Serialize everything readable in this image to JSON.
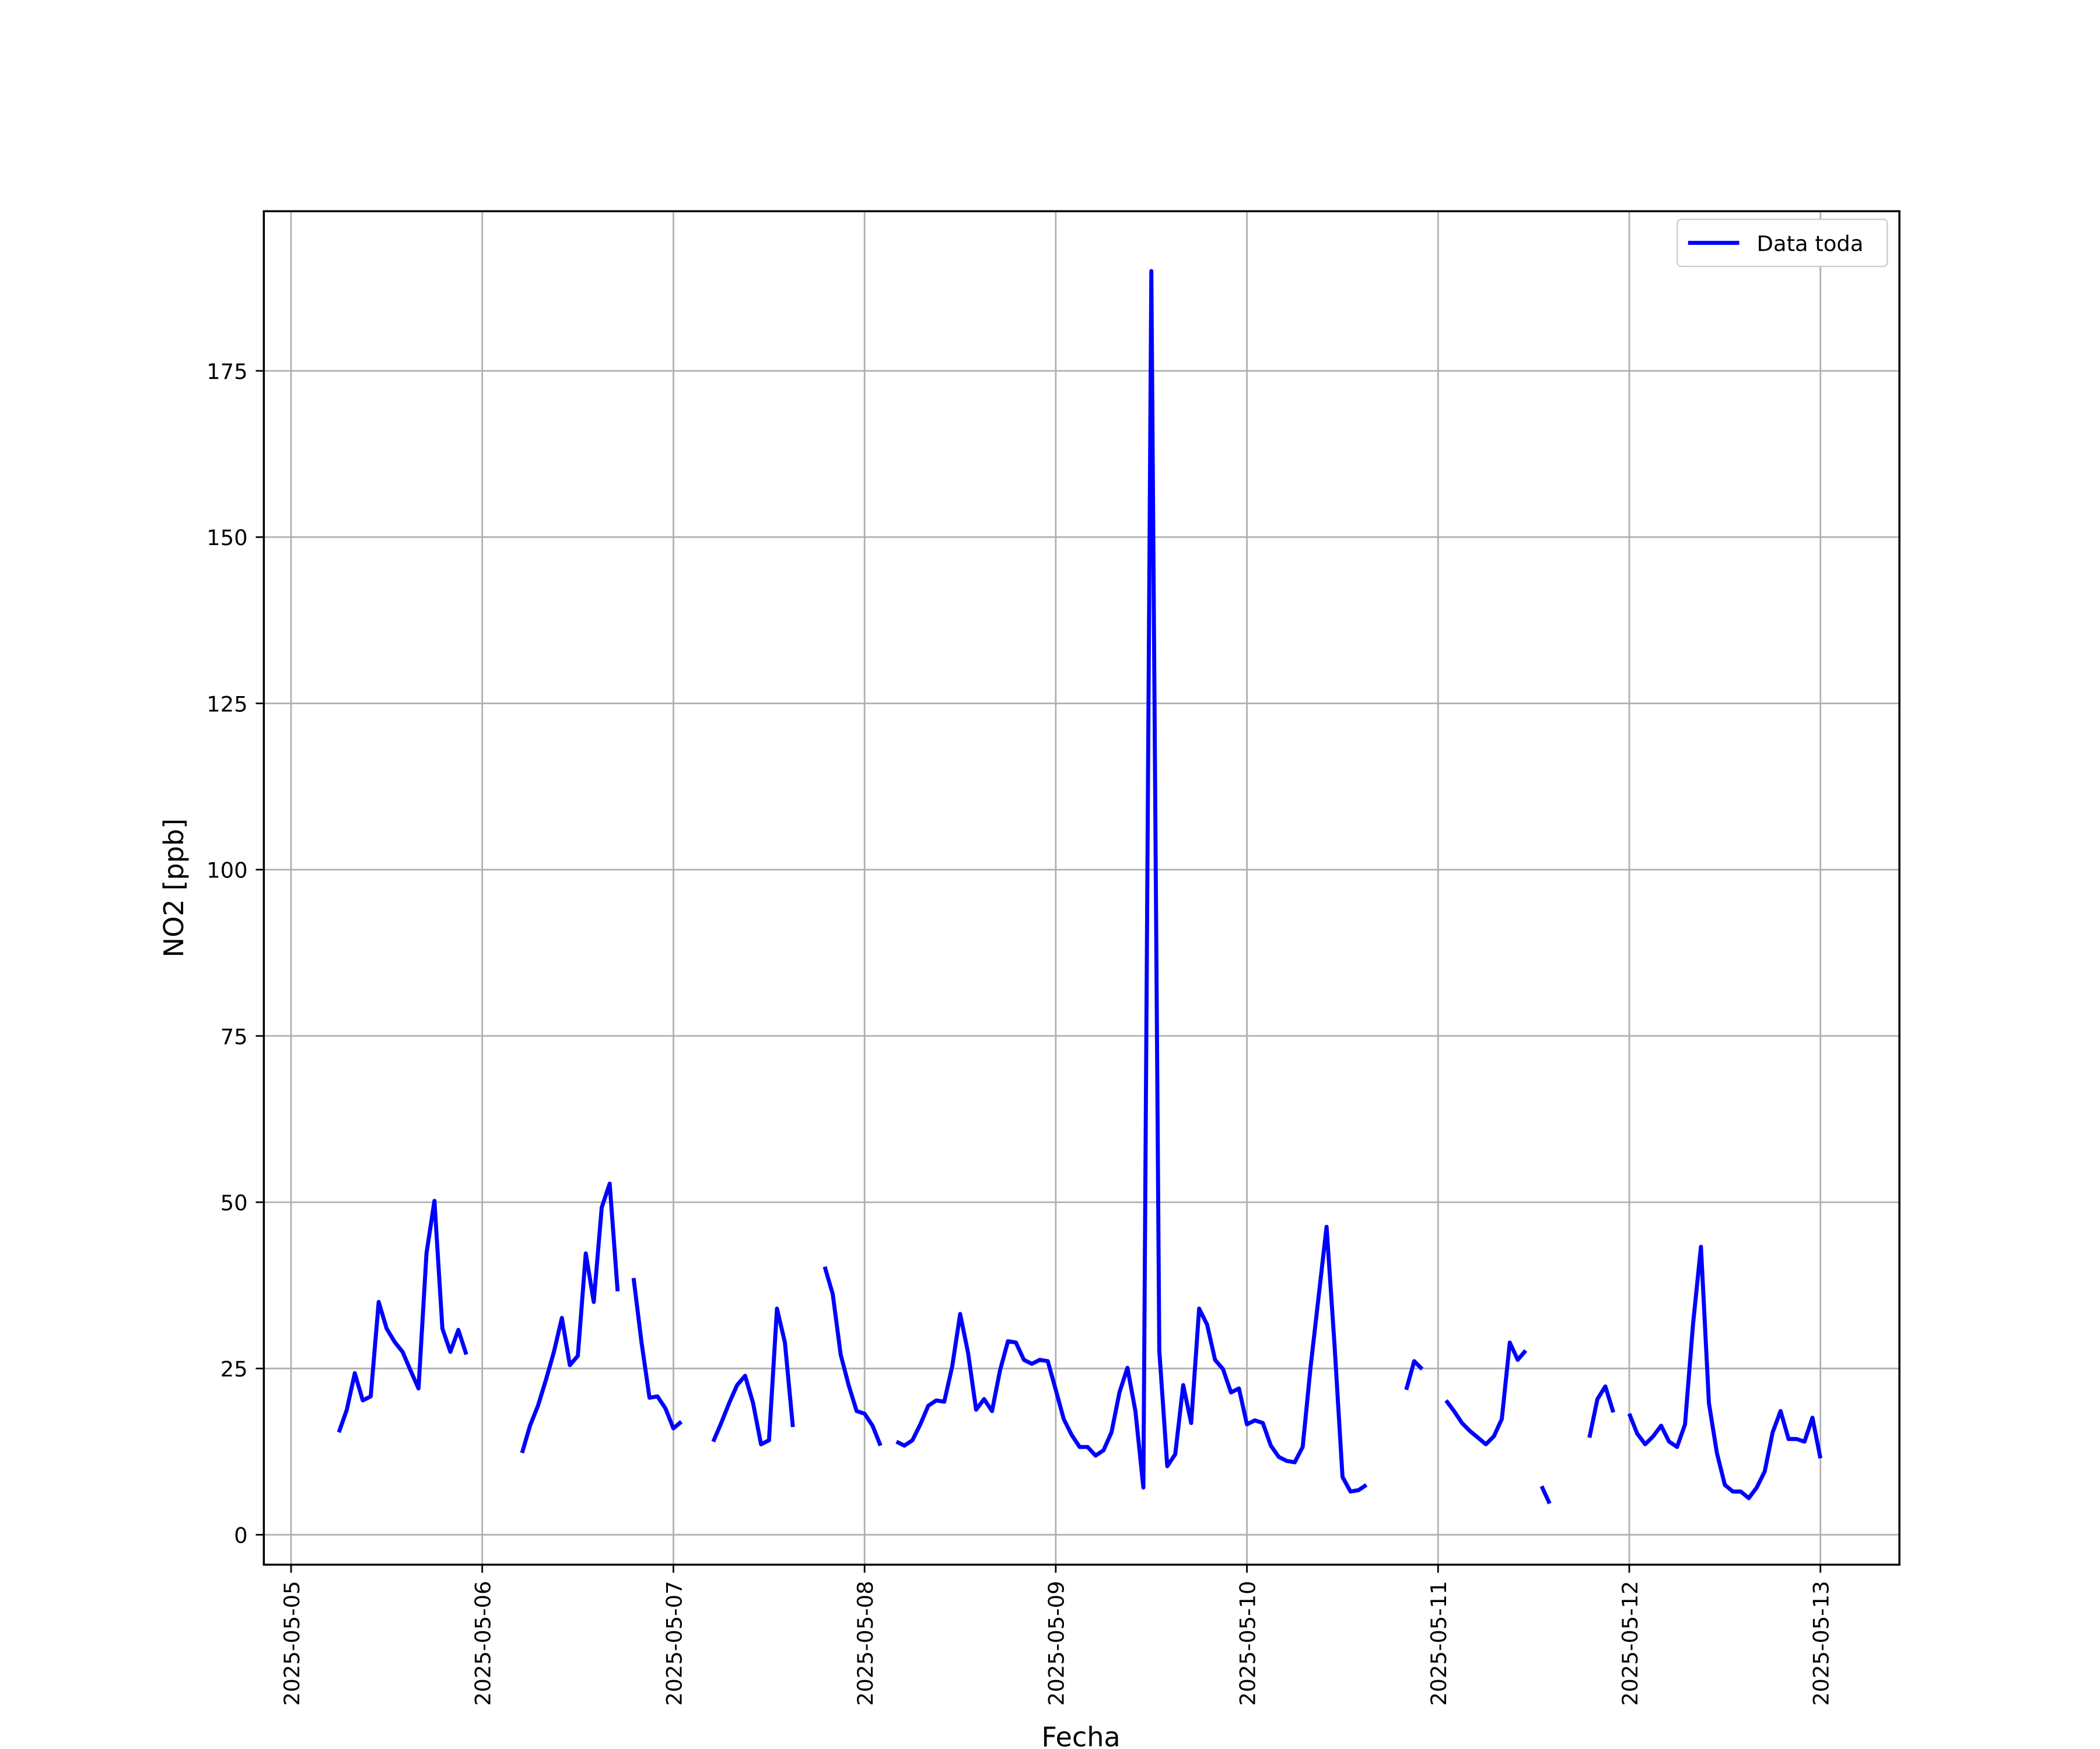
{
  "chart_data": {
    "type": "line",
    "xlabel": "Fecha",
    "ylabel": "NO2 [ppb]",
    "xlim": [
      "2025-05-04 20:35",
      "2025-05-13 09:55"
    ],
    "ylim": [
      -4.5,
      199
    ],
    "xticks": [
      "2025-05-05",
      "2025-05-06",
      "2025-05-07",
      "2025-05-08",
      "2025-05-09",
      "2025-05-10",
      "2025-05-11",
      "2025-05-12",
      "2025-05-13"
    ],
    "yticks": [
      0,
      25,
      50,
      75,
      100,
      125,
      150,
      175
    ],
    "grid": true,
    "legend": "upper right",
    "x": [
      "2025-05-05 06:00",
      "2025-05-05 07:00",
      "2025-05-05 08:00",
      "2025-05-05 09:00",
      "2025-05-05 10:00",
      "2025-05-05 11:00",
      "2025-05-05 12:00",
      "2025-05-05 13:00",
      "2025-05-05 14:00",
      "2025-05-05 15:00",
      "2025-05-05 16:00",
      "2025-05-05 17:00",
      "2025-05-05 18:00",
      "2025-05-05 19:00",
      "2025-05-05 20:00",
      "2025-05-05 21:00",
      "2025-05-05 22:00",
      "2025-05-05 23:00",
      "2025-05-06 05:00",
      "2025-05-06 06:00",
      "2025-05-06 07:00",
      "2025-05-06 08:00",
      "2025-05-06 09:00",
      "2025-05-06 10:00",
      "2025-05-06 11:00",
      "2025-05-06 12:00",
      "2025-05-06 13:00",
      "2025-05-06 14:00",
      "2025-05-06 15:00",
      "2025-05-06 16:00",
      "2025-05-06 17:00",
      "2025-05-06 18:00",
      "2025-05-06 19:00",
      "2025-05-06 20:00",
      "2025-05-06 21:00",
      "2025-05-06 22:00",
      "2025-05-06 23:00",
      "2025-05-07 00:00",
      "2025-05-07 01:00",
      "2025-05-07 02:00",
      "2025-05-07 05:00",
      "2025-05-07 06:00",
      "2025-05-07 07:00",
      "2025-05-07 08:00",
      "2025-05-07 09:00",
      "2025-05-07 10:00",
      "2025-05-07 11:00",
      "2025-05-07 12:00",
      "2025-05-07 13:00",
      "2025-05-07 14:00",
      "2025-05-07 15:00",
      "2025-05-07 16:00",
      "2025-05-07 19:00",
      "2025-05-07 20:00",
      "2025-05-07 21:00",
      "2025-05-07 22:00",
      "2025-05-07 23:00",
      "2025-05-08 00:00",
      "2025-05-08 01:00",
      "2025-05-08 02:00",
      "2025-05-08 03:00",
      "2025-05-08 04:00",
      "2025-05-08 05:00",
      "2025-05-08 06:00",
      "2025-05-08 07:00",
      "2025-05-08 08:00",
      "2025-05-08 09:00",
      "2025-05-08 10:00",
      "2025-05-08 11:00",
      "2025-05-08 12:00",
      "2025-05-08 13:00",
      "2025-05-08 14:00",
      "2025-05-08 15:00",
      "2025-05-08 16:00",
      "2025-05-08 17:00",
      "2025-05-08 18:00",
      "2025-05-08 19:00",
      "2025-05-08 20:00",
      "2025-05-08 21:00",
      "2025-05-08 22:00",
      "2025-05-08 23:00",
      "2025-05-09 00:00",
      "2025-05-09 01:00",
      "2025-05-09 02:00",
      "2025-05-09 03:00",
      "2025-05-09 04:00",
      "2025-05-09 05:00",
      "2025-05-09 06:00",
      "2025-05-09 07:00",
      "2025-05-09 08:00",
      "2025-05-09 09:00",
      "2025-05-09 10:00",
      "2025-05-09 11:00",
      "2025-05-09 12:00",
      "2025-05-09 13:00",
      "2025-05-09 14:00",
      "2025-05-09 15:00",
      "2025-05-09 16:00",
      "2025-05-09 17:00",
      "2025-05-09 18:00",
      "2025-05-09 19:00",
      "2025-05-09 20:00",
      "2025-05-09 21:00",
      "2025-05-09 22:00",
      "2025-05-09 23:00",
      "2025-05-10 00:00",
      "2025-05-10 01:00",
      "2025-05-10 02:00",
      "2025-05-10 03:00",
      "2025-05-10 04:00",
      "2025-05-10 05:00",
      "2025-05-10 06:00",
      "2025-05-10 07:00",
      "2025-05-10 08:00",
      "2025-05-10 09:00",
      "2025-05-10 10:00",
      "2025-05-10 11:00",
      "2025-05-10 12:00",
      "2025-05-10 13:00",
      "2025-05-10 14:00",
      "2025-05-10 15:00",
      "2025-05-10 16:00",
      "2025-05-10 20:00",
      "2025-05-10 21:00",
      "2025-05-10 22:00",
      "2025-05-10 23:00",
      "2025-05-11 01:00",
      "2025-05-11 02:00",
      "2025-05-11 03:00",
      "2025-05-11 04:00",
      "2025-05-11 05:00",
      "2025-05-11 06:00",
      "2025-05-11 07:00",
      "2025-05-11 08:00",
      "2025-05-11 09:00",
      "2025-05-11 10:00",
      "2025-05-11 11:00",
      "2025-05-11 12:00",
      "2025-05-11 13:00",
      "2025-05-11 14:00",
      "2025-05-11 15:00",
      "2025-05-11 19:00",
      "2025-05-11 20:00",
      "2025-05-11 21:00",
      "2025-05-11 22:00",
      "2025-05-11 23:00",
      "2025-05-12 00:00",
      "2025-05-12 01:00",
      "2025-05-12 02:00",
      "2025-05-12 03:00",
      "2025-05-12 04:00",
      "2025-05-12 05:00",
      "2025-05-12 06:00",
      "2025-05-12 07:00",
      "2025-05-12 08:00",
      "2025-05-12 09:00",
      "2025-05-12 10:00",
      "2025-05-12 11:00",
      "2025-05-12 12:00",
      "2025-05-12 13:00",
      "2025-05-12 14:00",
      "2025-05-12 15:00",
      "2025-05-12 16:00",
      "2025-05-12 17:00",
      "2025-05-12 18:00",
      "2025-05-12 19:00",
      "2025-05-12 20:00",
      "2025-05-12 21:00",
      "2025-05-12 22:00",
      "2025-05-12 23:00",
      "2025-05-13 00:00"
    ],
    "series": [
      {
        "name": "Data toda",
        "color": "#0000ff",
        "values": [
          15.4,
          18.8,
          24.3,
          20.2,
          20.8,
          35,
          31,
          29,
          27.5,
          24.7,
          22,
          42.3,
          50.2,
          31,
          27.5,
          30.8,
          27.1,
          null,
          12.3,
          16.4,
          19.4,
          23.3,
          27.5,
          32.6,
          25.5,
          26.9,
          42.3,
          35,
          49.2,
          52.8,
          36.6,
          null,
          38.6,
          28.9,
          20.6,
          20.8,
          19,
          16,
          17,
          null,
          14,
          16.8,
          19.8,
          22.5,
          23.9,
          19.8,
          13.6,
          14.2,
          34,
          28.9,
          16.2,
          null,
          40.3,
          36.2,
          27.1,
          22.5,
          18.6,
          18.2,
          16.4,
          13.4,
          null,
          14,
          13.4,
          14.2,
          16.6,
          19.4,
          20.2,
          20,
          25.3,
          33.2,
          27.3,
          18.8,
          20.4,
          18.6,
          24.7,
          29.1,
          28.9,
          26.3,
          25.7,
          26.3,
          26.1,
          21.8,
          17.4,
          15,
          13.2,
          13.2,
          11.9,
          12.7,
          15.4,
          21.4,
          25.1,
          18.6,
          7.1,
          190,
          27.7,
          10.3,
          12.1,
          22.5,
          16.8,
          34,
          31.6,
          26.3,
          24.9,
          21.4,
          22,
          16.6,
          17.2,
          16.8,
          13.4,
          11.7,
          11.1,
          10.9,
          13.2,
          25.3,
          35.8,
          46.3,
          28.5,
          8.7,
          6.5,
          6.7,
          7.5,
          null,
          21.8,
          26.1,
          24.9,
          null,
          20.2,
          18.6,
          16.8,
          15.6,
          14.6,
          13.6,
          14.8,
          17.4,
          28.9,
          26.3,
          27.7,
          null,
          7.3,
          4.7,
          null,
          14.6,
          20.4,
          22.3,
          18.4,
          null,
          18.2,
          15.2,
          13.6,
          14.8,
          16.4,
          14,
          13.2,
          16.6,
          31.6,
          43.3,
          19.8,
          12.3,
          7.5,
          6.5,
          6.5,
          5.5,
          7.1,
          9.5,
          15.4,
          18.6,
          14.4,
          14.4,
          14,
          17.6,
          11.5
        ]
      }
    ]
  }
}
